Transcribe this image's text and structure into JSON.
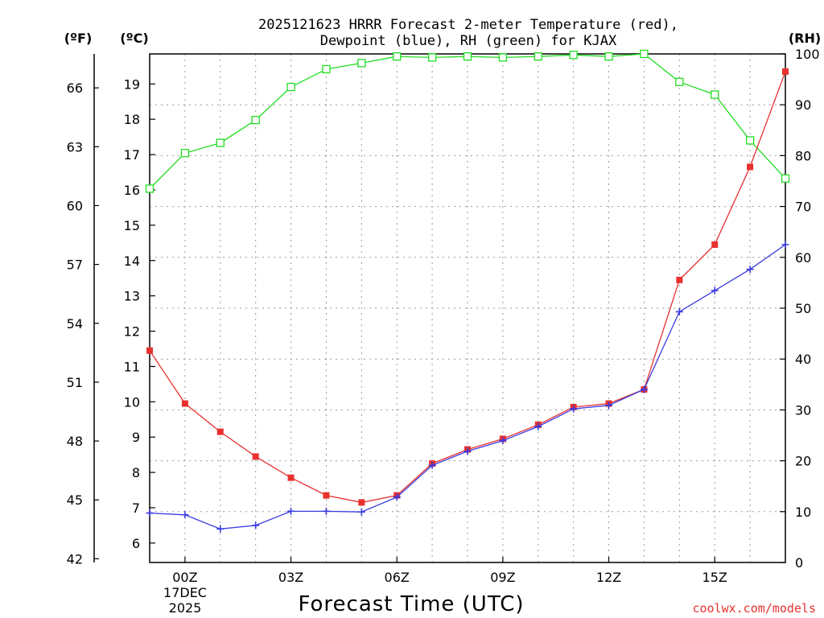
{
  "chart_data": {
    "type": "line",
    "title": "2025121623 HRRR Forecast 2-meter Temperature (red),",
    "subtitle": "Dewpoint (blue), RH (green) for KJAX",
    "xlabel": "Forecast Time (UTC)",
    "credit": "coolwx.com/models",
    "unit_left_f": "(ºF)",
    "unit_left_c": "(ºC)",
    "unit_right": "(RH)",
    "date_line1": "17DEC",
    "date_line2": "2025",
    "x_hours": [
      23,
      24,
      25,
      26,
      27,
      28,
      29,
      30,
      31,
      32,
      33,
      34,
      35,
      36,
      37,
      38,
      39,
      40,
      41
    ],
    "x_ticks": [
      {
        "hour": 24,
        "label": "00Z"
      },
      {
        "hour": 27,
        "label": "03Z"
      },
      {
        "hour": 30,
        "label": "06Z"
      },
      {
        "hour": 33,
        "label": "09Z"
      },
      {
        "hour": 36,
        "label": "12Z"
      },
      {
        "hour": 39,
        "label": "15Z"
      }
    ],
    "celsius_axis": {
      "range": [
        5.45,
        19.85
      ],
      "ticks": [
        6,
        7,
        8,
        9,
        10,
        11,
        12,
        13,
        14,
        15,
        16,
        17,
        18,
        19
      ]
    },
    "fahrenheit_ticks": [
      42,
      45,
      48,
      51,
      54,
      57,
      60,
      63,
      66
    ],
    "rh_axis": {
      "range": [
        0,
        100
      ],
      "ticks": [
        0,
        10,
        20,
        30,
        40,
        50,
        60,
        70,
        80,
        90,
        100
      ]
    },
    "series": [
      {
        "name": "Temperature",
        "axis": "C",
        "color": "#e8312f",
        "marker": "filled-square",
        "values": [
          11.45,
          9.95,
          9.15,
          8.45,
          7.85,
          7.35,
          7.15,
          7.35,
          8.25,
          8.65,
          8.95,
          9.35,
          9.85,
          9.95,
          10.35,
          13.45,
          14.45,
          16.65,
          19.35
        ]
      },
      {
        "name": "Dewpoint",
        "axis": "C",
        "color": "#3a3ae0",
        "marker": "plus",
        "values": [
          6.85,
          6.8,
          6.4,
          6.5,
          6.9,
          6.9,
          6.88,
          7.3,
          8.2,
          8.6,
          8.9,
          9.3,
          9.8,
          9.9,
          10.35,
          12.55,
          13.15,
          13.75,
          14.45
        ]
      },
      {
        "name": "RH",
        "axis": "RH",
        "color": "#22dd22",
        "marker": "open-square",
        "values": [
          73.5,
          80.5,
          82.5,
          87,
          93.5,
          97,
          98.2,
          99.5,
          99.3,
          99.5,
          99.3,
          99.5,
          99.8,
          99.5,
          100,
          94.5,
          92,
          83,
          75.5
        ]
      }
    ]
  }
}
